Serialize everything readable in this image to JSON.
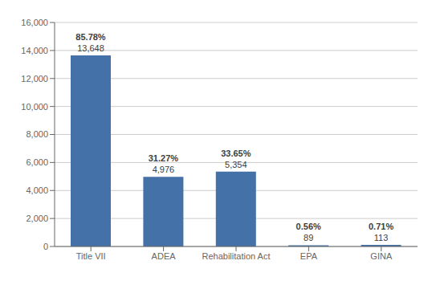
{
  "chart_data": {
    "type": "bar",
    "categories": [
      "Title VII",
      "ADEA",
      "Rehabilitation Act",
      "EPA",
      "GINA"
    ],
    "values": [
      13648,
      4976,
      5354,
      89,
      113
    ],
    "value_labels": [
      "13,648",
      "4,976",
      "5,354",
      "89",
      "113"
    ],
    "percentages": [
      "85.78%",
      "31.27%",
      "33.65%",
      "0.56%",
      "0.71%"
    ],
    "data_labels": true,
    "color": "#4472a8",
    "ylim": [
      0,
      16000
    ],
    "yticks": [
      0,
      {
        "value": 2000,
        "label": "2,000"
      },
      {
        "value": 4000,
        "label": "4,000"
      },
      {
        "value": 6000,
        "label": "6,000"
      },
      {
        "value": 8000,
        "label": "8,000"
      },
      {
        "value": 10000,
        "label": "10,000"
      },
      {
        "value": 12000,
        "label": "12,000"
      },
      {
        "value": 14000,
        "label": "14,000"
      },
      {
        "value": 16000,
        "label": "16,000"
      }
    ],
    "grid": true
  }
}
